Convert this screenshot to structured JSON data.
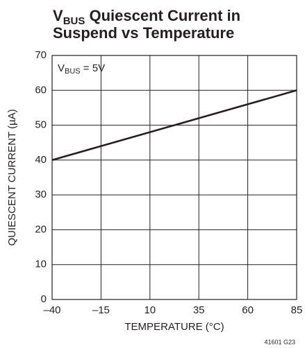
{
  "chart_data": {
    "type": "line",
    "title_line1": [
      "V",
      "BUS",
      " Quiescent Current in"
    ],
    "title_line2": "Suspend vs Temperature",
    "annotation": [
      "V",
      "BUS",
      " = 5V"
    ],
    "xlabel": "TEMPERATURE (°C)",
    "ylabel": "QUIESCENT CURRENT (µA)",
    "footnote": "41601 G23",
    "x": [
      -40,
      -15,
      10,
      35,
      60,
      85
    ],
    "series": [
      {
        "name": "VBUS = 5V",
        "color": "#231f20",
        "values": [
          40,
          44,
          48,
          52,
          56,
          60
        ]
      }
    ],
    "xlim": [
      -40,
      85
    ],
    "xticks": [
      {
        "value": -40,
        "label": "–40"
      },
      {
        "value": -15,
        "label": "–15"
      },
      10,
      35,
      60,
      85
    ],
    "ylim": [
      0,
      70
    ],
    "yticks": [
      0,
      10,
      20,
      30,
      40,
      50,
      60,
      70
    ],
    "grid": true
  }
}
